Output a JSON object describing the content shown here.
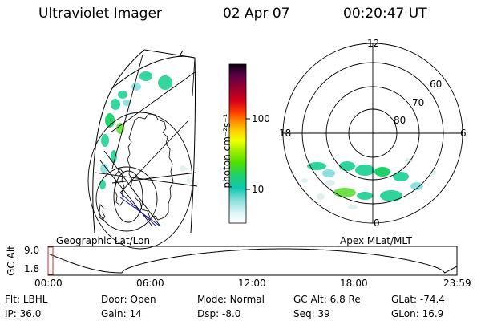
{
  "header": {
    "title": "Ultraviolet Imager",
    "date": "02 Apr 07",
    "time": "00:20:47 UT"
  },
  "colorbar": {
    "label": "photon cm⁻²s⁻¹",
    "ticks": [
      "100",
      "10"
    ],
    "scale": "log",
    "colors": [
      "#000000",
      "#22003a",
      "#5a0046",
      "#9a0030",
      "#d4001a",
      "#ff3a00",
      "#ff8c00",
      "#ffd000",
      "#f2ff00",
      "#a8f000",
      "#4fe000",
      "#1ed06a",
      "#10c8b0",
      "#8ee0e0",
      "#e0f6f6",
      "#ffffff"
    ]
  },
  "geo_panel": {
    "label": "Geographic Lat/Lon"
  },
  "polar_panel": {
    "label": "Apex MLat/MLT",
    "mlt_labels": {
      "top": "12",
      "left": "18",
      "right": "6",
      "bottom": "0"
    },
    "lat_labels": [
      "60",
      "70",
      "80"
    ]
  },
  "orbit": {
    "axis_title": "GC Alt",
    "y_ticks": [
      "9.0",
      "1.8"
    ],
    "x_ticks": [
      "00:00",
      "06:00",
      "12:00",
      "18:00",
      "23:59"
    ],
    "current_time_marker": "00:20:47"
  },
  "info": [
    [
      {
        "label": "Flt:",
        "value": "LBHL"
      },
      {
        "label": "Door:",
        "value": "Open"
      },
      {
        "label": "Mode:",
        "value": "Normal"
      },
      {
        "label": "GC Alt:",
        "value": "6.8 Re"
      },
      {
        "label": "GLat:",
        "value": "-74.4"
      }
    ],
    [
      {
        "label": "IP:",
        "value": "36.0"
      },
      {
        "label": "Gain:",
        "value": "14"
      },
      {
        "label": "Dsp:",
        "value": "-8.0"
      },
      {
        "label": "Seq:",
        "value": "39"
      },
      {
        "label": "GLon:",
        "value": "16.9"
      }
    ]
  ]
}
